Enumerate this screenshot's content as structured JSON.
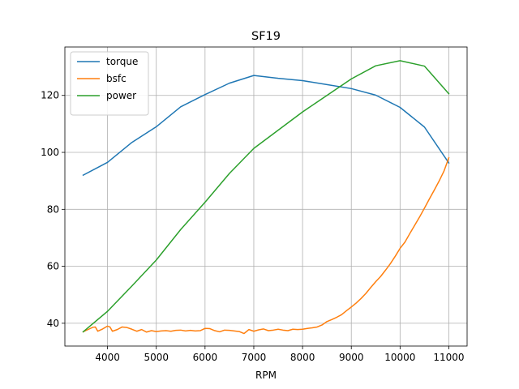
{
  "chart_data": {
    "type": "line",
    "title": "SF19",
    "xlabel": "RPM",
    "ylabel": "",
    "xlim": [
      3125,
      11375
    ],
    "ylim": [
      32,
      137
    ],
    "xticks": [
      4000,
      5000,
      6000,
      7000,
      8000,
      9000,
      10000,
      11000
    ],
    "yticks": [
      40,
      60,
      80,
      100,
      120
    ],
    "grid": true,
    "legend_position": "top-left",
    "series": [
      {
        "name": "torque",
        "color": "#1f77b4",
        "x": [
          3500,
          4000,
          4500,
          5000,
          5500,
          6000,
          6500,
          7000,
          7500,
          8000,
          8500,
          9000,
          9500,
          10000,
          10500,
          11000
        ],
        "y": [
          92,
          96.5,
          103.5,
          109,
          116,
          120.3,
          124.3,
          127,
          126,
          125.2,
          123.8,
          122.4,
          120.1,
          115.8,
          108.9,
          96.3
        ]
      },
      {
        "name": "bsfc",
        "color": "#ff7f0e",
        "x": [
          3500,
          3600,
          3700,
          3750,
          3800,
          3900,
          4000,
          4050,
          4100,
          4200,
          4300,
          4400,
          4500,
          4600,
          4700,
          4800,
          4900,
          5000,
          5100,
          5200,
          5300,
          5400,
          5500,
          5600,
          5700,
          5800,
          5900,
          6000,
          6100,
          6200,
          6300,
          6400,
          6500,
          6600,
          6700,
          6800,
          6900,
          7000,
          7100,
          7200,
          7300,
          7400,
          7500,
          7600,
          7700,
          7800,
          7900,
          8000,
          8100,
          8200,
          8300,
          8400,
          8500,
          8600,
          8700,
          8800,
          8900,
          9000,
          9100,
          9200,
          9300,
          9400,
          9500,
          9600,
          9700,
          9800,
          9900,
          10000,
          10100,
          10200,
          10300,
          10400,
          10500,
          10600,
          10700,
          10800,
          10900,
          11000
        ],
        "y": [
          37,
          37.8,
          38.6,
          38.7,
          37.2,
          38,
          39,
          38.7,
          37.2,
          37.8,
          38.7,
          38.5,
          37.9,
          37.2,
          37.8,
          36.9,
          37.4,
          37.1,
          37.3,
          37.4,
          37.2,
          37.5,
          37.6,
          37.3,
          37.5,
          37.3,
          37.4,
          38.2,
          38.1,
          37.4,
          37,
          37.6,
          37.5,
          37.3,
          37.1,
          36.4,
          37.8,
          37.2,
          37.7,
          38,
          37.4,
          37.6,
          37.9,
          37.6,
          37.4,
          37.9,
          37.8,
          37.9,
          38.2,
          38.4,
          38.7,
          39.4,
          40.6,
          41.3,
          42.1,
          43,
          44.4,
          45.7,
          47.1,
          48.7,
          50.5,
          52.6,
          54.6,
          56.4,
          58.6,
          60.9,
          63.5,
          66.3,
          68.5,
          71.5,
          74.4,
          77.3,
          80.4,
          83.6,
          86.7,
          89.9,
          93.4,
          98.1
        ]
      },
      {
        "name": "power",
        "color": "#2ca02c",
        "x": [
          3500,
          4000,
          4500,
          5000,
          5500,
          6000,
          6500,
          7000,
          7500,
          8000,
          8500,
          9000,
          9500,
          10000,
          10500,
          11000
        ],
        "y": [
          37,
          44.2,
          53.1,
          62.2,
          72.9,
          82.5,
          92.6,
          101.4,
          107.8,
          114.2,
          120,
          125.8,
          130.4,
          132.2,
          130.3,
          120.6
        ]
      }
    ]
  }
}
